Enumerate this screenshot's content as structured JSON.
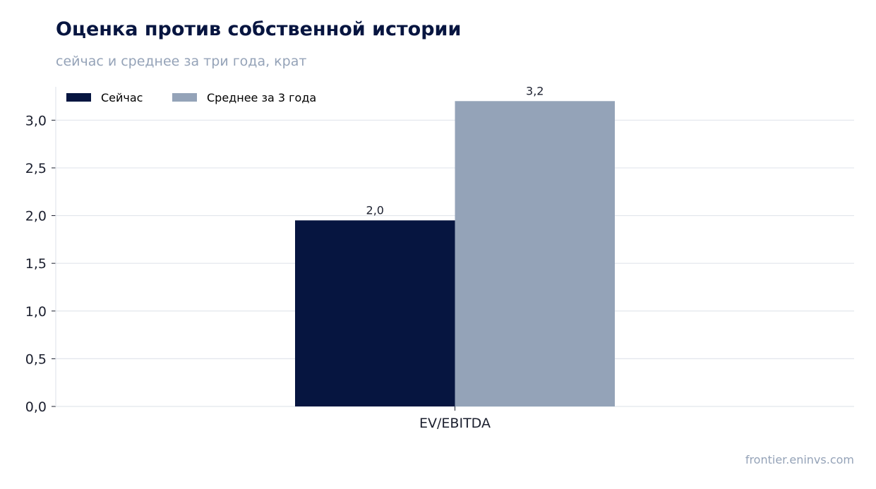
{
  "header": {
    "title": "Оценка против собственной истории",
    "subtitle": "сейчас и среднее за три года, крат"
  },
  "footer": {
    "source": "frontier.eninvs.com"
  },
  "chart_data": {
    "type": "bar",
    "categories": [
      "EV/EBITDA"
    ],
    "series": [
      {
        "name": "Сейчас",
        "values": [
          1.95
        ],
        "label": "2,0",
        "color": "#061540"
      },
      {
        "name": "Среднее за 3 года",
        "values": [
          3.2
        ],
        "label": "3,2",
        "color": "#94a3b8"
      }
    ],
    "ylim": [
      0,
      3.35
    ],
    "yticks": [
      0,
      0.5,
      1.0,
      1.5,
      2.0,
      2.5,
      3.0
    ],
    "ytick_labels": [
      "0,0",
      "0,5",
      "1,0",
      "1,5",
      "2,0",
      "2,5",
      "3,0"
    ],
    "grid": true,
    "legend": "top-left"
  }
}
